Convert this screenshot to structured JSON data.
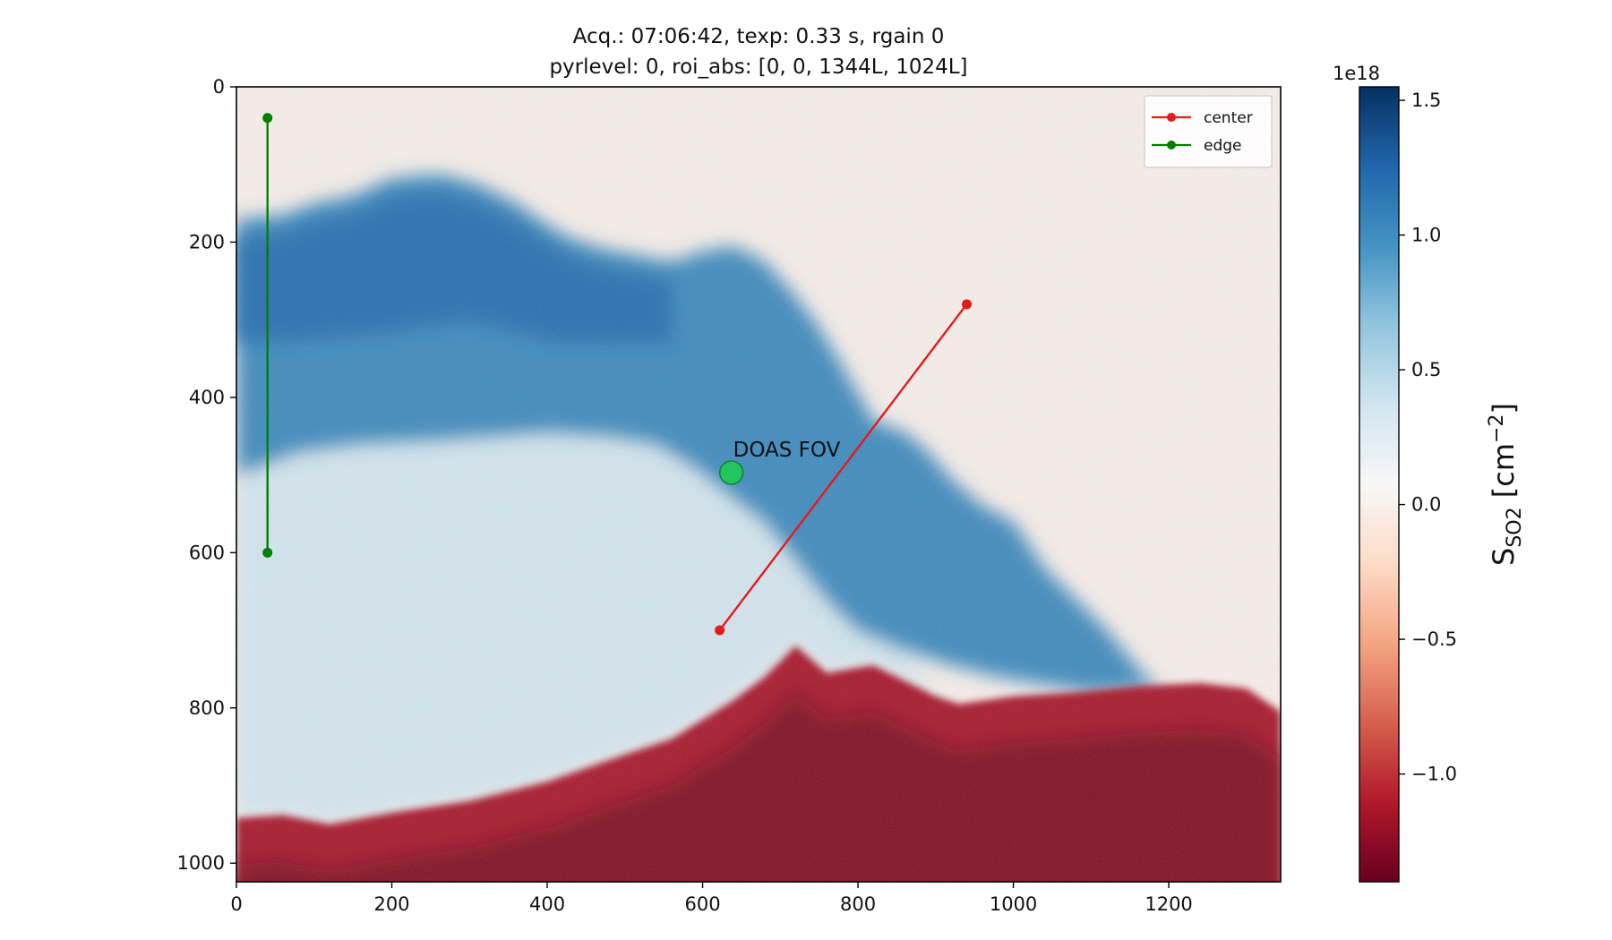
{
  "chart_data": {
    "type": "heatmap",
    "title_lines": [
      "Acq.: 07:06:42, texp: 0.33 s, rgain 0",
      "pyrlevel: 0, roi_abs: [0, 0, 1344L, 1024L]"
    ],
    "image_size": [
      1344,
      1024
    ],
    "xlim": [
      0,
      1344
    ],
    "ylim": [
      1024,
      0
    ],
    "x_ticks": [
      0,
      200,
      400,
      600,
      800,
      1000,
      1200
    ],
    "y_ticks": [
      0,
      200,
      400,
      600,
      800,
      1000
    ],
    "colorbar": {
      "label_main": "S",
      "label_sub": "SO2",
      "label_unit": " [cm",
      "label_sup": "−2",
      "label_close": "]",
      "exponent_label": "1e18",
      "range": [
        -1.4,
        1.55
      ],
      "ticks": [
        1.5,
        1.0,
        0.5,
        0.0,
        -0.5,
        -1.0
      ],
      "tick_labels": [
        "1.5",
        "1.0",
        "0.5",
        "0.0",
        "−0.5",
        "−1.0"
      ],
      "colormap": "RdBu",
      "colors_low_to_high": [
        "#67001f",
        "#b2182b",
        "#d6604d",
        "#f4a582",
        "#fddbc7",
        "#f7f7f7",
        "#d1e5f0",
        "#92c5de",
        "#4393c3",
        "#2166ac",
        "#053061"
      ]
    },
    "plume_profile": {
      "description_level": 1.2,
      "upper_boundary": [
        [
          0,
          170
        ],
        [
          60,
          165
        ],
        [
          100,
          150
        ],
        [
          150,
          140
        ],
        [
          200,
          118
        ],
        [
          260,
          112
        ],
        [
          310,
          125
        ],
        [
          360,
          150
        ],
        [
          400,
          178
        ],
        [
          430,
          195
        ],
        [
          470,
          208
        ],
        [
          520,
          218
        ],
        [
          560,
          225
        ],
        [
          600,
          212
        ],
        [
          640,
          205
        ],
        [
          680,
          225
        ],
        [
          720,
          270
        ],
        [
          750,
          310
        ],
        [
          780,
          360
        ],
        [
          820,
          430
        ],
        [
          860,
          445
        ],
        [
          890,
          470
        ],
        [
          920,
          505
        ],
        [
          960,
          540
        ],
        [
          1000,
          560
        ],
        [
          1040,
          620
        ],
        [
          1080,
          660
        ],
        [
          1120,
          700
        ],
        [
          1170,
          760
        ],
        [
          1190,
          775
        ]
      ],
      "lower_boundary": [
        [
          1190,
          775
        ],
        [
          1100,
          780
        ],
        [
          1040,
          770
        ],
        [
          980,
          760
        ],
        [
          920,
          745
        ],
        [
          860,
          725
        ],
        [
          800,
          700
        ],
        [
          760,
          660
        ],
        [
          720,
          610
        ],
        [
          680,
          560
        ],
        [
          640,
          530
        ],
        [
          590,
          490
        ],
        [
          540,
          460
        ],
        [
          480,
          450
        ],
        [
          400,
          445
        ],
        [
          330,
          450
        ],
        [
          260,
          455
        ],
        [
          160,
          460
        ],
        [
          80,
          470
        ],
        [
          0,
          500
        ]
      ]
    },
    "weak_cloud_level": 0.35,
    "ground_level": -1.15,
    "ground_profile": [
      [
        0,
        942
      ],
      [
        60,
        938
      ],
      [
        120,
        950
      ],
      [
        200,
        935
      ],
      [
        300,
        920
      ],
      [
        400,
        895
      ],
      [
        500,
        860
      ],
      [
        560,
        840
      ],
      [
        600,
        815
      ],
      [
        640,
        790
      ],
      [
        680,
        760
      ],
      [
        720,
        720
      ],
      [
        760,
        755
      ],
      [
        800,
        748
      ],
      [
        820,
        745
      ],
      [
        860,
        765
      ],
      [
        900,
        785
      ],
      [
        930,
        795
      ],
      [
        1000,
        785
      ],
      [
        1080,
        780
      ],
      [
        1160,
        772
      ],
      [
        1240,
        768
      ],
      [
        1300,
        775
      ],
      [
        1344,
        805
      ]
    ],
    "series": [
      {
        "name": "center",
        "color": "#e41a1c",
        "points": [
          [
            622,
            700
          ],
          [
            940,
            280
          ]
        ]
      },
      {
        "name": "edge",
        "color": "#008000",
        "points": [
          [
            40,
            40
          ],
          [
            40,
            600
          ]
        ]
      }
    ],
    "annotations": [
      {
        "text": "DOAS FOV",
        "x": 637,
        "y": 497,
        "marker_color": "#22c55e",
        "marker_edge": "#15803d"
      }
    ],
    "legend_placement": "top-right",
    "grid": false
  }
}
